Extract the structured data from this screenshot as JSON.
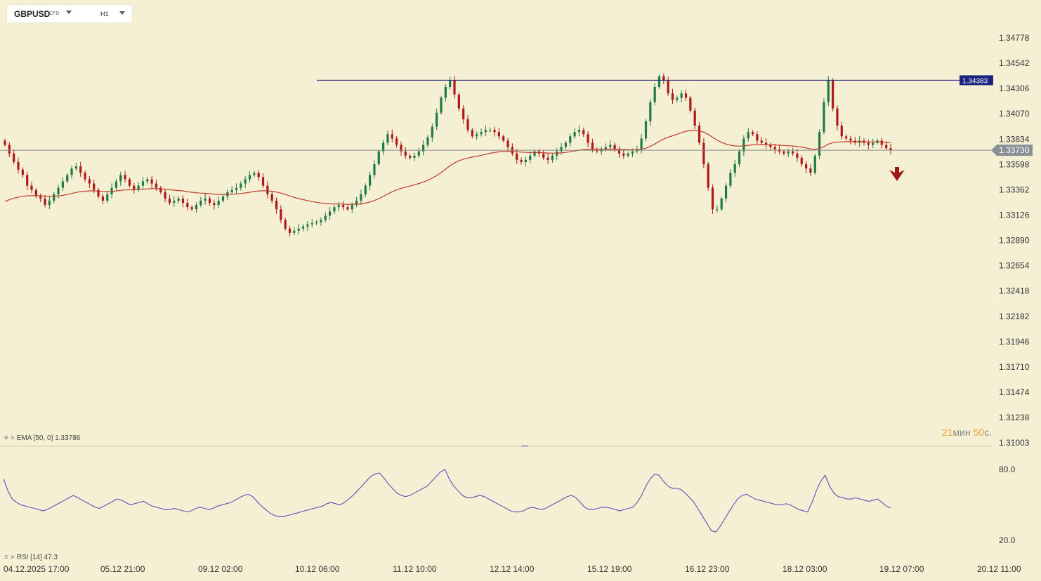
{
  "header": {
    "symbol": "GBPUSD",
    "symbol_type": "CFD",
    "timeframe": "H1"
  },
  "indicators": {
    "ema_label": "EMA",
    "ema_params": "[50, 0]",
    "ema_value": "1.33786",
    "rsi_label": "RSI",
    "rsi_params": "[14]",
    "rsi_value": "47.3"
  },
  "timer": {
    "minutes": "21",
    "min_unit": "мин",
    "seconds": "50",
    "sec_unit": "с."
  },
  "colors": {
    "background": "#f5f0d4",
    "bull": "#1e7a46",
    "bear": "#b01818",
    "ema": "#c0392b",
    "rsi": "#5b4fb8",
    "hline": "#1a237e",
    "price_line": "#888888",
    "arrow": "#a01818"
  },
  "chart_data": {
    "type": "candlestick",
    "symbol": "GBPUSD",
    "timeframe": "H1",
    "ylim": [
      1.31003,
      1.35014
    ],
    "y_ticks": [
      "1.34778",
      "1.34542",
      "1.34306",
      "1.34070",
      "1.33834",
      "1.33598",
      "1.33362",
      "1.33126",
      "1.32890",
      "1.32654",
      "1.32418",
      "1.32182",
      "1.31946",
      "1.31710",
      "1.31474",
      "1.31238",
      "1.31003"
    ],
    "x_ticks": [
      "04.12.2025  17:00",
      "05.12  21:00",
      "09.12  02:00",
      "10.12  06:00",
      "11.12  10:00",
      "12.12  14:00",
      "15.12  19:00",
      "16.12  23:00",
      "18.12  03:00",
      "19.12  07:00",
      "20.12  11:00"
    ],
    "horizontal_line": {
      "value": 1.34383,
      "label": "1.34383"
    },
    "current_price": {
      "value": 1.3373,
      "label": "1.33730"
    },
    "close_series": [
      1.3378,
      1.337,
      1.3362,
      1.3355,
      1.335,
      1.334,
      1.3336,
      1.333,
      1.3328,
      1.3322,
      1.3326,
      1.3332,
      1.3338,
      1.3344,
      1.335,
      1.3356,
      1.3358,
      1.3352,
      1.3346,
      1.3342,
      1.3336,
      1.333,
      1.3326,
      1.3332,
      1.3338,
      1.3344,
      1.335,
      1.3346,
      1.334,
      1.3336,
      1.334,
      1.3344,
      1.3346,
      1.3342,
      1.3338,
      1.3334,
      1.3328,
      1.3324,
      1.3326,
      1.3328,
      1.3324,
      1.332,
      1.3318,
      1.3322,
      1.3326,
      1.3328,
      1.3324,
      1.3322,
      1.3326,
      1.333,
      1.3334,
      1.3336,
      1.3338,
      1.3342,
      1.3346,
      1.335,
      1.3352,
      1.3348,
      1.334,
      1.3332,
      1.3326,
      1.3318,
      1.3308,
      1.33,
      1.3296,
      1.3298,
      1.33,
      1.3302,
      1.3304,
      1.3305,
      1.3306,
      1.3308,
      1.3312,
      1.3316,
      1.332,
      1.3322,
      1.332,
      1.3318,
      1.3322,
      1.3326,
      1.3332,
      1.334,
      1.335,
      1.336,
      1.3372,
      1.338,
      1.3388,
      1.3384,
      1.3378,
      1.3372,
      1.3368,
      1.3366,
      1.3368,
      1.3372,
      1.3378,
      1.3385,
      1.3395,
      1.3408,
      1.3422,
      1.3432,
      1.3438,
      1.3425,
      1.3412,
      1.3402,
      1.3392,
      1.3386,
      1.3388,
      1.339,
      1.3392,
      1.3392,
      1.339,
      1.3386,
      1.3382,
      1.3376,
      1.337,
      1.3364,
      1.3362,
      1.3364,
      1.3368,
      1.3372,
      1.337,
      1.3366,
      1.3364,
      1.3368,
      1.3372,
      1.3376,
      1.338,
      1.3386,
      1.339,
      1.3392,
      1.3388,
      1.338,
      1.3374,
      1.3372,
      1.3374,
      1.3376,
      1.3378,
      1.3374,
      1.337,
      1.3368,
      1.337,
      1.3372,
      1.3374,
      1.3384,
      1.34,
      1.3418,
      1.3432,
      1.3442,
      1.3438,
      1.3426,
      1.342,
      1.3422,
      1.3426,
      1.3422,
      1.341,
      1.3396,
      1.338,
      1.336,
      1.3338,
      1.3318,
      1.3318,
      1.3328,
      1.334,
      1.3352,
      1.336,
      1.3372,
      1.3384,
      1.339,
      1.3388,
      1.3382,
      1.338,
      1.3378,
      1.3376,
      1.3374,
      1.3372,
      1.337,
      1.3372,
      1.337,
      1.3366,
      1.336,
      1.3356,
      1.3352,
      1.3368,
      1.339,
      1.3418,
      1.3438,
      1.3412,
      1.3396,
      1.3386,
      1.3384,
      1.3382,
      1.338,
      1.3382,
      1.338,
      1.3378,
      1.338,
      1.3382,
      1.3378,
      1.3375,
      1.3373
    ],
    "rsi": {
      "name": "RSI",
      "period": 14,
      "current": 47.3,
      "y_ticks": [
        "80.0",
        "20.0"
      ],
      "values": [
        72,
        62,
        55,
        52,
        50,
        49,
        48,
        47,
        46,
        45,
        46,
        48,
        50,
        52,
        54,
        56,
        58,
        56,
        54,
        52,
        50,
        48,
        47,
        49,
        51,
        53,
        55,
        54,
        52,
        50,
        51,
        52,
        53,
        51,
        49,
        48,
        47,
        46,
        46,
        47,
        46,
        45,
        44,
        45,
        47,
        48,
        47,
        46,
        47,
        49,
        50,
        51,
        52,
        54,
        56,
        58,
        59,
        57,
        53,
        49,
        46,
        43,
        41,
        40,
        40,
        41,
        42,
        43,
        44,
        45,
        46,
        47,
        48,
        49,
        51,
        52,
        51,
        50,
        52,
        55,
        58,
        62,
        66,
        70,
        74,
        76,
        77,
        73,
        68,
        64,
        60,
        58,
        57,
        58,
        60,
        62,
        64,
        66,
        70,
        74,
        78,
        80,
        72,
        66,
        62,
        58,
        56,
        56,
        57,
        58,
        57,
        55,
        53,
        51,
        49,
        47,
        45,
        44,
        44,
        45,
        47,
        48,
        47,
        46,
        47,
        49,
        51,
        53,
        55,
        57,
        58,
        56,
        52,
        48,
        46,
        46,
        47,
        48,
        48,
        47,
        46,
        45,
        46,
        47,
        48,
        52,
        58,
        66,
        72,
        76,
        75,
        70,
        66,
        64,
        64,
        63,
        60,
        56,
        52,
        46,
        40,
        34,
        28,
        27,
        32,
        38,
        44,
        50,
        55,
        58,
        59,
        57,
        55,
        54,
        53,
        52,
        51,
        50,
        50,
        51,
        50,
        48,
        46,
        45,
        44,
        52,
        62,
        70,
        75,
        66,
        60,
        57,
        56,
        55,
        55,
        56,
        55,
        54,
        53,
        54,
        55,
        52,
        49,
        47.3
      ]
    },
    "ema": {
      "name": "EMA",
      "period": 50,
      "current": 1.33786
    }
  }
}
